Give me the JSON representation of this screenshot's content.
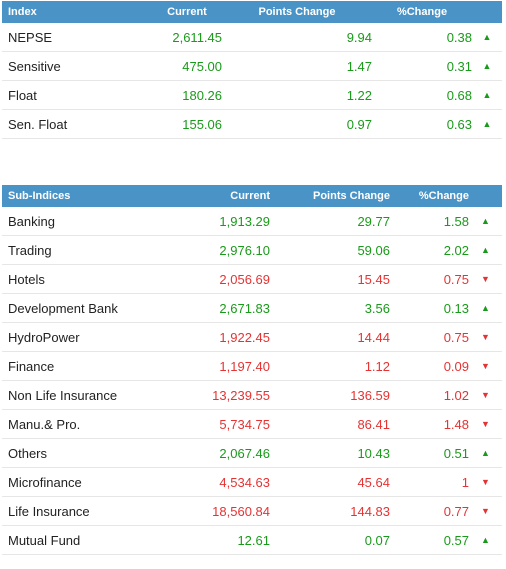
{
  "index_table": {
    "headers": {
      "name": "Index",
      "current": "Current",
      "points": "Points Change",
      "pct": "%Change"
    },
    "rows": [
      {
        "name": "NEPSE",
        "current": "2,611.45",
        "points": "9.94",
        "pct": "0.38",
        "direction": "up",
        "arrow": "▲"
      },
      {
        "name": "Sensitive",
        "current": "475.00",
        "points": "1.47",
        "pct": "0.31",
        "direction": "up",
        "arrow": "▲"
      },
      {
        "name": "Float",
        "current": "180.26",
        "points": "1.22",
        "pct": "0.68",
        "direction": "up",
        "arrow": "▲"
      },
      {
        "name": "Sen. Float",
        "current": "155.06",
        "points": "0.97",
        "pct": "0.63",
        "direction": "up",
        "arrow": "▲"
      }
    ]
  },
  "sub_table": {
    "headers": {
      "name": "Sub-Indices",
      "current": "Current",
      "points": "Points Change",
      "pct": "%Change"
    },
    "rows": [
      {
        "name": "Banking",
        "current": "1,913.29",
        "points": "29.77",
        "pct": "1.58",
        "direction": "up",
        "arrow": "▲"
      },
      {
        "name": "Trading",
        "current": "2,976.10",
        "points": "59.06",
        "pct": "2.02",
        "direction": "up",
        "arrow": "▲"
      },
      {
        "name": "Hotels",
        "current": "2,056.69",
        "points": "15.45",
        "pct": "0.75",
        "direction": "down",
        "arrow": "▼"
      },
      {
        "name": "Development Bank",
        "current": "2,671.83",
        "points": "3.56",
        "pct": "0.13",
        "direction": "up",
        "arrow": "▲"
      },
      {
        "name": "HydroPower",
        "current": "1,922.45",
        "points": "14.44",
        "pct": "0.75",
        "direction": "down",
        "arrow": "▼"
      },
      {
        "name": "Finance",
        "current": "1,197.40",
        "points": "1.12",
        "pct": "0.09",
        "direction": "down",
        "arrow": "▼"
      },
      {
        "name": "Non Life Insurance",
        "current": "13,239.55",
        "points": "136.59",
        "pct": "1.02",
        "direction": "down",
        "arrow": "▼"
      },
      {
        "name": "Manu.& Pro.",
        "current": "5,734.75",
        "points": "86.41",
        "pct": "1.48",
        "direction": "down",
        "arrow": "▼"
      },
      {
        "name": "Others",
        "current": "2,067.46",
        "points": "10.43",
        "pct": "0.51",
        "direction": "up",
        "arrow": "▲"
      },
      {
        "name": "Microfinance",
        "current": "4,534.63",
        "points": "45.64",
        "pct": "1",
        "direction": "down",
        "arrow": "▼"
      },
      {
        "name": "Life Insurance",
        "current": "18,560.84",
        "points": "144.83",
        "pct": "0.77",
        "direction": "down",
        "arrow": "▼"
      },
      {
        "name": "Mutual Fund",
        "current": "12.61",
        "points": "0.07",
        "pct": "0.57",
        "direction": "up",
        "arrow": "▲"
      }
    ]
  },
  "colors": {
    "header_bg": "#4a93c6",
    "up": "#1a9a1a",
    "down": "#e53333"
  }
}
